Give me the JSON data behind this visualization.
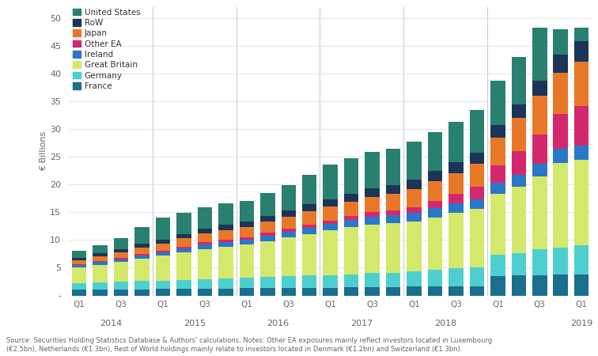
{
  "n_bars": 25,
  "quarters": [
    "Q1",
    "",
    "Q3",
    "",
    "Q1",
    "",
    "Q3",
    "",
    "Q1",
    "",
    "Q3",
    "",
    "Q1",
    "",
    "Q3",
    "",
    "Q1",
    "",
    "Q3",
    "",
    "Q1",
    "",
    "Q3",
    "",
    "Q1"
  ],
  "year_separators": [
    3.5,
    7.5,
    11.5,
    15.5,
    19.5
  ],
  "year_positions": [
    1.5,
    5.5,
    9.5,
    13.5,
    17.5,
    24.0
  ],
  "year_labels": [
    "2014",
    "2015",
    "2016",
    "2017",
    "2018",
    "2019"
  ],
  "series": {
    "France": [
      1.0,
      1.0,
      1.1,
      1.1,
      1.2,
      1.2,
      1.2,
      1.2,
      1.3,
      1.3,
      1.4,
      1.4,
      1.4,
      1.5,
      1.5,
      1.5,
      1.6,
      1.6,
      1.7,
      1.7,
      3.5,
      3.6,
      3.7,
      3.8,
      3.8
    ],
    "Germany": [
      1.2,
      1.3,
      1.4,
      1.5,
      1.5,
      1.6,
      1.7,
      1.8,
      1.9,
      2.0,
      2.1,
      2.2,
      2.3,
      2.3,
      2.5,
      2.6,
      2.8,
      3.0,
      3.2,
      3.4,
      3.8,
      4.0,
      4.7,
      4.9,
      5.2
    ],
    "Great Britain": [
      2.8,
      3.2,
      3.5,
      4.0,
      4.5,
      5.0,
      5.5,
      5.8,
      6.0,
      6.5,
      7.0,
      7.5,
      8.0,
      8.5,
      8.8,
      8.9,
      9.0,
      9.5,
      10.0,
      10.5,
      11.0,
      12.0,
      13.0,
      15.2,
      15.5
    ],
    "Ireland": [
      0.5,
      0.5,
      0.5,
      0.6,
      0.6,
      0.7,
      0.8,
      0.8,
      0.9,
      1.0,
      1.0,
      1.1,
      1.2,
      1.3,
      1.4,
      1.5,
      1.5,
      1.6,
      1.7,
      1.8,
      2.0,
      2.2,
      2.4,
      2.5,
      2.5
    ],
    "Other EA": [
      0.2,
      0.2,
      0.3,
      0.3,
      0.3,
      0.3,
      0.4,
      0.4,
      0.4,
      0.5,
      0.5,
      0.6,
      0.6,
      0.7,
      0.8,
      0.9,
      1.0,
      1.3,
      1.7,
      2.2,
      3.2,
      4.2,
      5.2,
      6.3,
      7.2
    ],
    "Japan": [
      0.7,
      0.9,
      1.0,
      1.2,
      1.3,
      1.5,
      1.6,
      1.8,
      1.9,
      2.0,
      2.2,
      2.4,
      2.5,
      2.6,
      2.8,
      2.9,
      3.3,
      3.6,
      3.8,
      4.2,
      5.0,
      6.0,
      7.0,
      7.5,
      8.0
    ],
    "RoW": [
      0.4,
      0.5,
      0.6,
      0.7,
      0.7,
      0.8,
      0.9,
      1.0,
      1.0,
      1.1,
      1.2,
      1.3,
      1.4,
      1.5,
      1.5,
      1.6,
      1.7,
      1.8,
      1.9,
      2.0,
      2.3,
      2.5,
      2.8,
      3.3,
      3.6
    ],
    "United States": [
      1.2,
      1.5,
      2.0,
      3.0,
      4.0,
      3.8,
      3.8,
      3.8,
      3.7,
      4.1,
      4.5,
      5.3,
      6.2,
      6.3,
      6.6,
      6.5,
      6.9,
      7.0,
      7.3,
      7.7,
      8.0,
      8.5,
      9.5,
      4.5,
      2.5
    ]
  },
  "colors": {
    "France": "#1a6e8e",
    "Germany": "#4ecfcf",
    "Great Britain": "#d4e86c",
    "Ireland": "#2878c8",
    "Other EA": "#d4286e",
    "Japan": "#e87828",
    "RoW": "#1a3558",
    "United States": "#2a8070"
  },
  "stack_order": [
    "France",
    "Germany",
    "Great Britain",
    "Ireland",
    "Other EA",
    "Japan",
    "RoW",
    "United States"
  ],
  "legend_order": [
    "United States",
    "RoW",
    "Japan",
    "Other EA",
    "Ireland",
    "Great Britain",
    "Germany",
    "France"
  ],
  "ylabel": "€ Billions",
  "ylim": [
    0,
    52
  ],
  "yticks": [
    0,
    5,
    10,
    15,
    20,
    25,
    30,
    35,
    40,
    45,
    50
  ],
  "bar_width": 0.7,
  "footnote": "Source: Securities Holding Statistics Database & Authors' calculations. Notes: Other EA exposures mainly reflect investors located in Luxembourg\n(€2.5bn), Netherlands (€1.3bn), Rest of World holdings mainly relate to investors located in Denmark (€1.2bn) and Switzerland (€1.3bn).",
  "background_color": "#ffffff",
  "text_color": "#666666"
}
